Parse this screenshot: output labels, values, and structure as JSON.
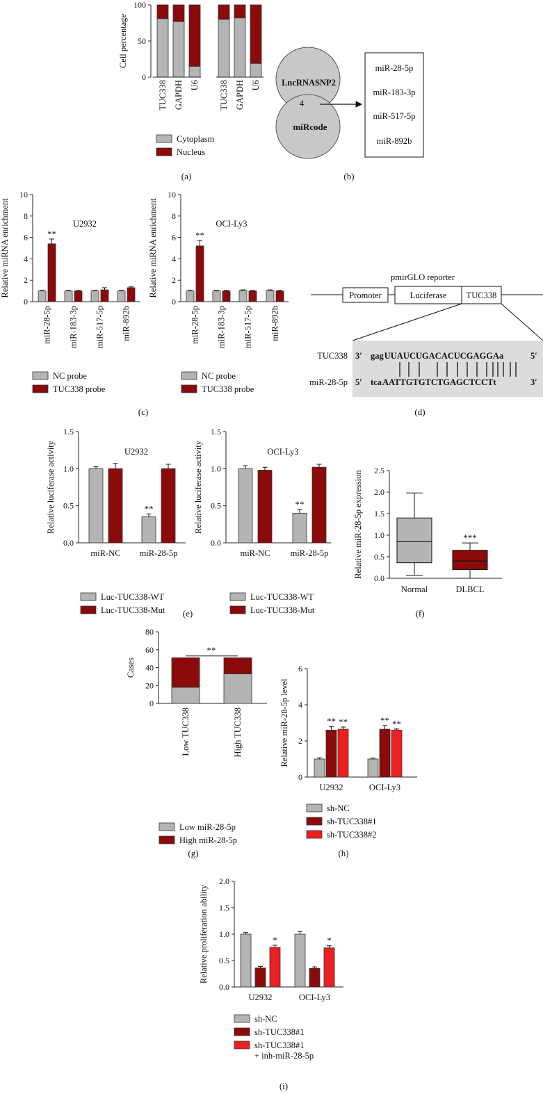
{
  "colors": {
    "gray": "#b4b4b4",
    "darkred": "#8b0a0a",
    "red": "#ec2020",
    "axis": "#222222",
    "panel_d_bg": "#dcdcdc"
  },
  "panel_labels": {
    "a": "(a)",
    "b": "(b)",
    "c": "(c)",
    "d": "(d)",
    "e": "(e)",
    "f": "(f)",
    "g": "(g)",
    "h": "(h)",
    "i": "(i)"
  },
  "chart_data": [
    {
      "id": "a",
      "type": "bar",
      "stacked": true,
      "ylabel": "Cell percentage",
      "ylim": [
        0,
        100
      ],
      "yticks": [
        0,
        50,
        100
      ],
      "categories": [
        "TUC338",
        "GAPDH",
        "U6",
        "TUC338",
        "GAPDH",
        "U6"
      ],
      "series": [
        {
          "name": "Cytoplasm",
          "values": [
            81,
            77,
            15,
            80,
            82,
            19
          ]
        },
        {
          "name": "Nucleus",
          "values": [
            19,
            23,
            85,
            20,
            18,
            81
          ]
        }
      ]
    },
    {
      "id": "c1",
      "type": "bar",
      "title": "U2932",
      "ylabel": "Relative miRNA enrichment",
      "ylim": [
        0,
        10
      ],
      "yticks": [
        0,
        2,
        4,
        6,
        8,
        10
      ],
      "categories": [
        "miR-28-5p",
        "miR-183-3p",
        "miR-517-5p",
        "miR-892b"
      ],
      "series": [
        {
          "name": "NC probe",
          "values": [
            1.0,
            1.0,
            1.0,
            1.0
          ],
          "errors": [
            0.05,
            0.05,
            0.05,
            0.05
          ],
          "annotations": [
            "",
            "",
            "",
            ""
          ]
        },
        {
          "name": "TUC338 probe",
          "values": [
            5.4,
            1.0,
            1.1,
            1.3
          ],
          "errors": [
            0.45,
            0.05,
            0.2,
            0.08
          ],
          "annotations": [
            "**",
            "",
            "",
            ""
          ]
        }
      ]
    },
    {
      "id": "c2",
      "type": "bar",
      "title": "OCI-Ly3",
      "ylabel": "Relative miRNA enrichment",
      "ylim": [
        0,
        10
      ],
      "yticks": [
        0,
        2,
        4,
        6,
        8,
        10
      ],
      "categories": [
        "miR-28-5p",
        "miR-183-3p",
        "miR-517-5p",
        "miR-892b"
      ],
      "series": [
        {
          "name": "NC probe",
          "values": [
            1.0,
            1.0,
            1.05,
            1.05
          ],
          "errors": [
            0.05,
            0.05,
            0.05,
            0.05
          ],
          "annotations": [
            "",
            "",
            "",
            ""
          ]
        },
        {
          "name": "TUC338 probe",
          "values": [
            5.2,
            1.0,
            1.0,
            1.0
          ],
          "errors": [
            0.5,
            0.05,
            0.05,
            0.05
          ],
          "annotations": [
            "**",
            "",
            "",
            ""
          ]
        }
      ]
    },
    {
      "id": "e1",
      "type": "bar",
      "title": "U2932",
      "ylabel": "Relative luciferase activity",
      "ylim": [
        0,
        1.5
      ],
      "yticks": [
        0.0,
        0.5,
        1.0,
        1.5
      ],
      "categories": [
        "miR-NC",
        "miR-28-5p"
      ],
      "series": [
        {
          "name": "Luc-TUC338-WT",
          "values": [
            1.0,
            0.35
          ],
          "errors": [
            0.03,
            0.04
          ],
          "annotations": [
            "",
            "**"
          ]
        },
        {
          "name": "Luc-TUC338-Mut",
          "values": [
            1.0,
            1.0
          ],
          "errors": [
            0.07,
            0.06
          ],
          "annotations": [
            "",
            ""
          ]
        }
      ]
    },
    {
      "id": "e2",
      "type": "bar",
      "title": "OCI-Ly3",
      "ylabel": "Relative luciferase activity",
      "ylim": [
        0,
        1.5
      ],
      "yticks": [
        0.0,
        0.5,
        1.0,
        1.5
      ],
      "categories": [
        "miR-NC",
        "miR-28-5p"
      ],
      "series": [
        {
          "name": "Luc-TUC338-WT",
          "values": [
            1.0,
            0.4
          ],
          "errors": [
            0.04,
            0.05
          ],
          "annotations": [
            "",
            "**"
          ]
        },
        {
          "name": "Luc-TUC338-Mut",
          "values": [
            0.98,
            1.02
          ],
          "errors": [
            0.04,
            0.04
          ],
          "annotations": [
            "",
            ""
          ]
        }
      ]
    },
    {
      "id": "f",
      "type": "boxplot",
      "ylabel": "Relative miR-28-5p expression",
      "ylim": [
        0,
        2.5
      ],
      "yticks": [
        0.0,
        0.5,
        1.0,
        1.5,
        2.0,
        2.5
      ],
      "categories": [
        "Normal",
        "DLBCL"
      ],
      "boxes": [
        {
          "name": "Normal",
          "min": 0.07,
          "q1": 0.36,
          "median": 0.85,
          "q3": 1.4,
          "max": 1.98,
          "annotation": ""
        },
        {
          "name": "DLBCL",
          "min": 0.0,
          "q1": 0.2,
          "median": 0.4,
          "q3": 0.65,
          "max": 0.82,
          "annotation": "***"
        }
      ]
    },
    {
      "id": "g",
      "type": "bar",
      "stacked": true,
      "ylabel": "Cases",
      "ylim": [
        0,
        80
      ],
      "yticks": [
        0,
        20,
        40,
        60,
        80
      ],
      "categories": [
        "Low TUC338",
        "High TUC338"
      ],
      "series": [
        {
          "name": "Low miR-28-5p",
          "values": [
            18,
            33
          ]
        },
        {
          "name": "High miR-28-5p",
          "values": [
            33,
            18
          ]
        }
      ],
      "significance": "**"
    },
    {
      "id": "h",
      "type": "bar",
      "ylabel": "Relative miR-28-5p level",
      "ylim": [
        0,
        6
      ],
      "yticks": [
        0,
        2,
        4,
        6
      ],
      "categories": [
        "U2932",
        "OCI-Ly3"
      ],
      "series": [
        {
          "name": "sh-NC",
          "values": [
            1.0,
            1.0
          ],
          "errors": [
            0.06,
            0.05
          ],
          "annotations": [
            "",
            ""
          ]
        },
        {
          "name": "sh-TUC338#1",
          "values": [
            2.6,
            2.65
          ],
          "errors": [
            0.2,
            0.2
          ],
          "annotations": [
            "**",
            "**"
          ]
        },
        {
          "name": "sh-TUC338#2",
          "values": [
            2.65,
            2.6
          ],
          "errors": [
            0.12,
            0.06
          ],
          "annotations": [
            "**",
            "**"
          ]
        }
      ]
    },
    {
      "id": "i",
      "type": "bar",
      "ylabel": "Relative proliferation ability",
      "ylim": [
        0,
        2.0
      ],
      "yticks": [
        0.0,
        0.5,
        1.0,
        1.5,
        2.0
      ],
      "categories": [
        "U2932",
        "OCI-Ly3"
      ],
      "series": [
        {
          "name": "sh-NC",
          "values": [
            1.0,
            1.0
          ],
          "errors": [
            0.03,
            0.05
          ],
          "annotations": [
            "",
            ""
          ]
        },
        {
          "name": "sh-TUC338#1",
          "values": [
            0.36,
            0.35
          ],
          "errors": [
            0.03,
            0.03
          ],
          "annotations": [
            "",
            ""
          ]
        },
        {
          "name": "sh-TUC338#1\n+ inh-miR-28-5p",
          "values": [
            0.75,
            0.74
          ],
          "errors": [
            0.04,
            0.04
          ],
          "annotations": [
            "*",
            "*"
          ]
        }
      ]
    }
  ],
  "panel_b": {
    "top_label": "LncRNASNP2",
    "count": "4",
    "bottom_label": "miRcode",
    "mirnas": [
      "miR-28-5p",
      "miR-183-3p",
      "miR-517-5p",
      "miR-892b"
    ]
  },
  "panel_d": {
    "title": "pmirGLO reporter",
    "promoter": "Promoter",
    "luciferase": "Luciferase",
    "insert": "TUC338",
    "seq1_name": "TUC338",
    "seq1_left": "3′",
    "seq1_lower": "gag",
    "seq1_upper": "UUAUCUGACACUCGAGGA",
    "seq1_tail": "a",
    "seq1_right": "5′",
    "seq2_name": "miR-28-5p",
    "seq2_left": "5′",
    "seq2_lower": "tca",
    "seq2_upper": "AATTGTGTCTGAGCTCCT",
    "seq2_tail": "t",
    "seq2_right": "3′"
  }
}
